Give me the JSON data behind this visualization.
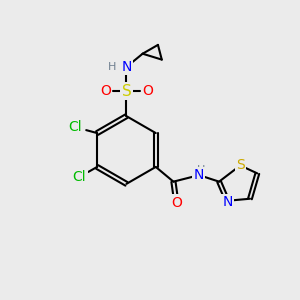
{
  "bg_color": "#ebebeb",
  "atom_colors": {
    "C": "#000000",
    "H": "#708090",
    "N": "#0000ff",
    "O": "#ff0000",
    "S_sulfonyl": "#cccc00",
    "S_thiazole": "#ccaa00",
    "Cl": "#00bb00"
  },
  "font_size_atom": 10,
  "font_size_small": 8,
  "lw": 1.5
}
